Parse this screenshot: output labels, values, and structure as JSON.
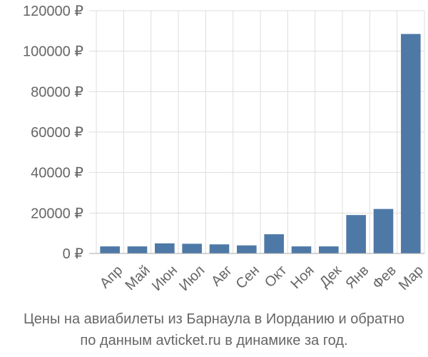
{
  "caption": {
    "line1": "Цены на авиабилеты из Барнаула в Иорданию и обратно",
    "line2": "по данным avticket.ru в динамике за год."
  },
  "colors": {
    "bar": "#4e79a7",
    "grid": "#dddddd",
    "axis": "#aaaaaa",
    "text": "#666666"
  },
  "chart_data": {
    "type": "bar",
    "categories": [
      "Апр",
      "Май",
      "Июн",
      "Июл",
      "Авг",
      "Сен",
      "Окт",
      "Ноя",
      "Дек",
      "Янв",
      "Фев",
      "Мар"
    ],
    "series": [
      {
        "values": [
          3500,
          3500,
          5000,
          4800,
          4500,
          4000,
          9500,
          3500,
          3500,
          19000,
          22000,
          108500
        ]
      }
    ],
    "ylim": [
      0,
      120000
    ],
    "yticks": [
      0,
      20000,
      40000,
      60000,
      80000,
      100000,
      120000
    ],
    "ytick_labels": [
      "0 ₽",
      "20000 ₽",
      "40000 ₽",
      "60000 ₽",
      "80000 ₽",
      "100000 ₽",
      "120000 ₽"
    ],
    "grid": true,
    "xlabel": "",
    "ylabel": ""
  }
}
